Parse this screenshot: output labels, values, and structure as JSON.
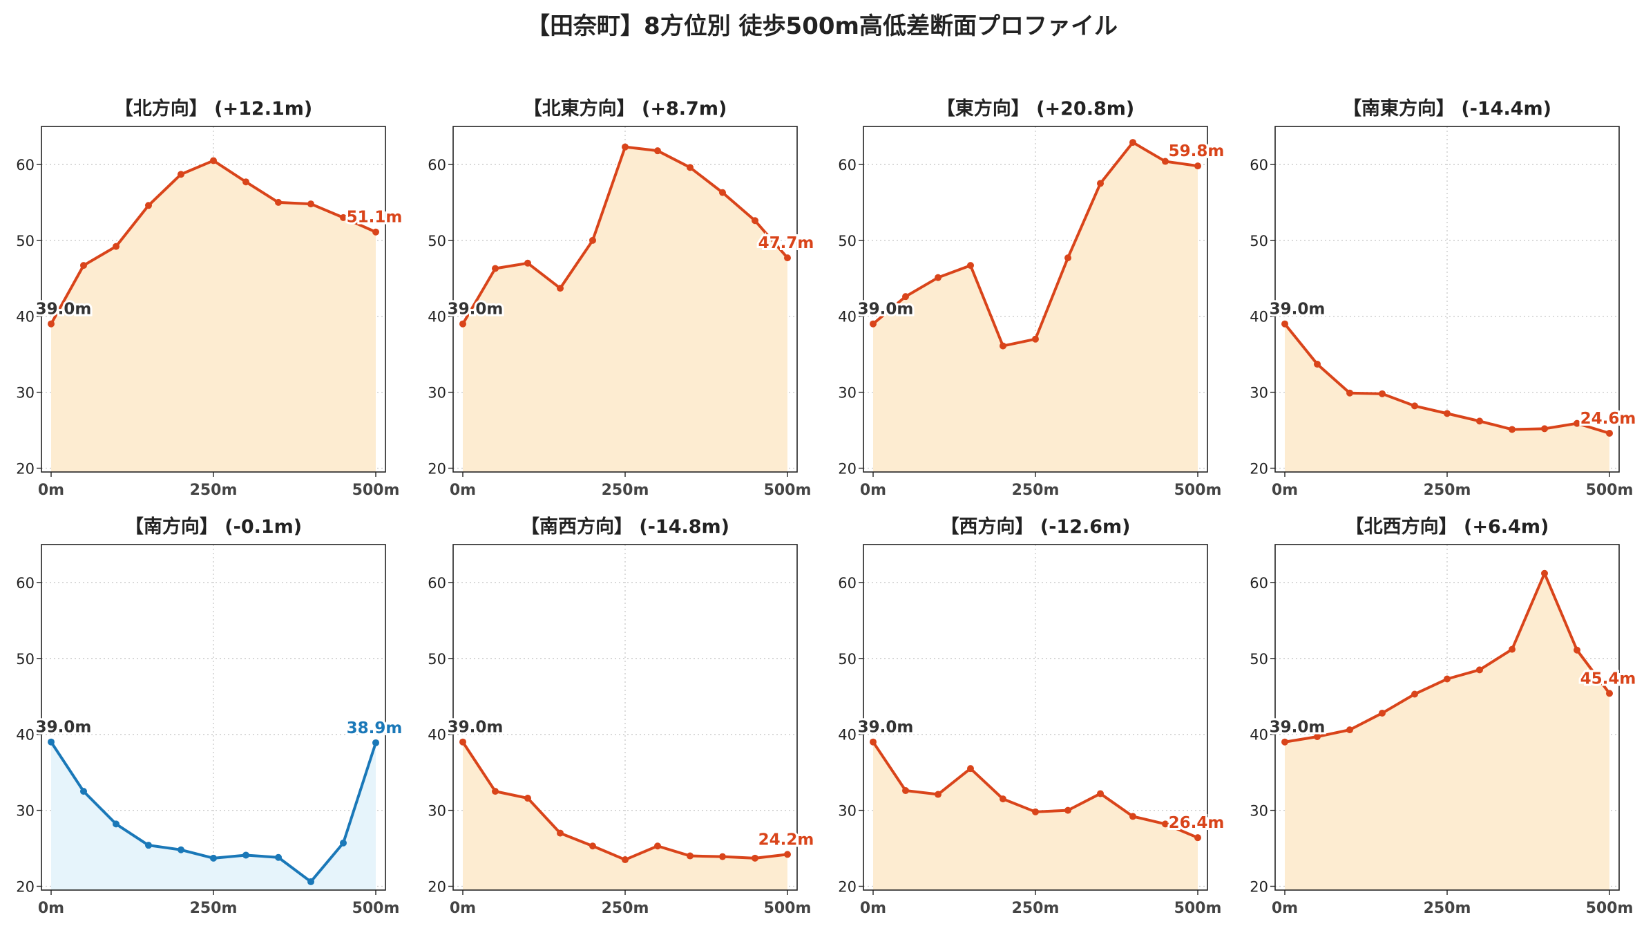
{
  "page": {
    "title": "【田奈町】8方位別 徒歩500m高低差断面プロファイル"
  },
  "colors": {
    "uphill_line": "#d9441a",
    "uphill_fill": "#fdecd1",
    "uphill_label": "#d9441a",
    "downhill_line": "#1a78b8",
    "downhill_fill": "#e6f4fb",
    "downhill_label": "#1a78b8",
    "start_label": "#333333",
    "grid": "#c8c8c8",
    "axis_text": "#222222"
  },
  "chart_data": [
    {
      "type": "area",
      "title": "【北方向】 (+12.1m)",
      "x": [
        0,
        50,
        100,
        150,
        200,
        250,
        300,
        350,
        400,
        450,
        500
      ],
      "series": [
        {
          "values": [
            39.0,
            46.7,
            49.2,
            54.6,
            58.7,
            60.5,
            57.7,
            55.0,
            54.8,
            53.0,
            51.1
          ]
        }
      ],
      "start_label": "39.0m",
      "end_label": "51.1m",
      "ylim": [
        19.5,
        65
      ],
      "yticks": [
        20,
        30,
        40,
        50,
        60
      ],
      "xticks": [
        "0m",
        "250m",
        "500m"
      ],
      "grid": true,
      "scheme": "uphill"
    },
    {
      "type": "area",
      "title": "【北東方向】 (+8.7m)",
      "x": [
        0,
        50,
        100,
        150,
        200,
        250,
        300,
        350,
        400,
        450,
        500
      ],
      "series": [
        {
          "values": [
            39.0,
            46.3,
            47.0,
            43.7,
            50.0,
            62.3,
            61.8,
            59.6,
            56.3,
            52.6,
            47.7
          ]
        }
      ],
      "start_label": "39.0m",
      "end_label": "47.7m",
      "ylim": [
        19.5,
        65
      ],
      "yticks": [
        20,
        30,
        40,
        50,
        60
      ],
      "xticks": [
        "0m",
        "250m",
        "500m"
      ],
      "grid": true,
      "scheme": "uphill"
    },
    {
      "type": "area",
      "title": "【東方向】 (+20.8m)",
      "x": [
        0,
        50,
        100,
        150,
        200,
        250,
        300,
        350,
        400,
        450,
        500
      ],
      "series": [
        {
          "values": [
            39.0,
            42.6,
            45.1,
            46.7,
            36.1,
            37.0,
            47.7,
            57.5,
            62.9,
            60.4,
            59.8
          ]
        }
      ],
      "start_label": "39.0m",
      "end_label": "59.8m",
      "ylim": [
        19.5,
        65
      ],
      "yticks": [
        20,
        30,
        40,
        50,
        60
      ],
      "xticks": [
        "0m",
        "250m",
        "500m"
      ],
      "grid": true,
      "scheme": "uphill"
    },
    {
      "type": "area",
      "title": "【南東方向】 (-14.4m)",
      "x": [
        0,
        50,
        100,
        150,
        200,
        250,
        300,
        350,
        400,
        450,
        500
      ],
      "series": [
        {
          "values": [
            39.0,
            33.7,
            29.9,
            29.8,
            28.2,
            27.2,
            26.2,
            25.1,
            25.2,
            25.9,
            24.6
          ]
        }
      ],
      "start_label": "39.0m",
      "end_label": "24.6m",
      "ylim": [
        19.5,
        65
      ],
      "yticks": [
        20,
        30,
        40,
        50,
        60
      ],
      "xticks": [
        "0m",
        "250m",
        "500m"
      ],
      "grid": true,
      "scheme": "uphill"
    },
    {
      "type": "area",
      "title": "【南方向】 (-0.1m)",
      "x": [
        0,
        50,
        100,
        150,
        200,
        250,
        300,
        350,
        400,
        450,
        500
      ],
      "series": [
        {
          "values": [
            39.0,
            32.5,
            28.2,
            25.4,
            24.8,
            23.7,
            24.1,
            23.8,
            20.6,
            25.7,
            38.9
          ]
        }
      ],
      "start_label": "39.0m",
      "end_label": "38.9m",
      "ylim": [
        19.5,
        65
      ],
      "yticks": [
        20,
        30,
        40,
        50,
        60
      ],
      "xticks": [
        "0m",
        "250m",
        "500m"
      ],
      "grid": true,
      "scheme": "downhill"
    },
    {
      "type": "area",
      "title": "【南西方向】 (-14.8m)",
      "x": [
        0,
        50,
        100,
        150,
        200,
        250,
        300,
        350,
        400,
        450,
        500
      ],
      "series": [
        {
          "values": [
            39.0,
            32.5,
            31.6,
            27.0,
            25.3,
            23.5,
            25.3,
            24.0,
            23.9,
            23.7,
            24.2
          ]
        }
      ],
      "start_label": "39.0m",
      "end_label": "24.2m",
      "ylim": [
        19.5,
        65
      ],
      "yticks": [
        20,
        30,
        40,
        50,
        60
      ],
      "xticks": [
        "0m",
        "250m",
        "500m"
      ],
      "grid": true,
      "scheme": "uphill"
    },
    {
      "type": "area",
      "title": "【西方向】 (-12.6m)",
      "x": [
        0,
        50,
        100,
        150,
        200,
        250,
        300,
        350,
        400,
        450,
        500
      ],
      "series": [
        {
          "values": [
            39.0,
            32.6,
            32.1,
            35.5,
            31.5,
            29.8,
            30.0,
            32.2,
            29.2,
            28.2,
            26.4
          ]
        }
      ],
      "start_label": "39.0m",
      "end_label": "26.4m",
      "ylim": [
        19.5,
        65
      ],
      "yticks": [
        20,
        30,
        40,
        50,
        60
      ],
      "xticks": [
        "0m",
        "250m",
        "500m"
      ],
      "grid": true,
      "scheme": "uphill"
    },
    {
      "type": "area",
      "title": "【北西方向】 (+6.4m)",
      "x": [
        0,
        50,
        100,
        150,
        200,
        250,
        300,
        350,
        400,
        450,
        500
      ],
      "series": [
        {
          "values": [
            39.0,
            39.7,
            40.6,
            42.8,
            45.3,
            47.3,
            48.5,
            51.2,
            61.2,
            51.1,
            45.4
          ]
        }
      ],
      "start_label": "39.0m",
      "end_label": "45.4m",
      "ylim": [
        19.5,
        65
      ],
      "yticks": [
        20,
        30,
        40,
        50,
        60
      ],
      "xticks": [
        "0m",
        "250m",
        "500m"
      ],
      "grid": true,
      "scheme": "uphill"
    }
  ]
}
